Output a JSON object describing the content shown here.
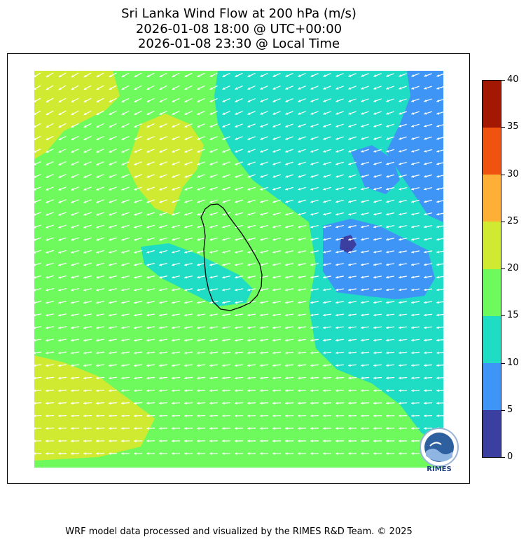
{
  "title": {
    "line1": "Sri Lanka Wind Flow at 200 hPa (m/s)",
    "line2": "2026-01-08 18:00 @ UTC+00:00",
    "line3": "2026-01-08 23:30 @ Local Time"
  },
  "colorbar": {
    "min": 0,
    "max": 40,
    "ticks": [
      "0",
      "5",
      "10",
      "15",
      "20",
      "25",
      "30",
      "35",
      "40"
    ],
    "bins": [
      {
        "from": 0,
        "to": 5,
        "color": "#3b3fa0"
      },
      {
        "from": 5,
        "to": 10,
        "color": "#3f95f5"
      },
      {
        "from": 10,
        "to": 15,
        "color": "#1fdcc4"
      },
      {
        "from": 15,
        "to": 20,
        "color": "#6efa5c"
      },
      {
        "from": 20,
        "to": 25,
        "color": "#cfea30"
      },
      {
        "from": 25,
        "to": 30,
        "color": "#fdaf36"
      },
      {
        "from": 30,
        "to": 35,
        "color": "#f0520f"
      },
      {
        "from": 35,
        "to": 40,
        "color": "#a31803"
      }
    ]
  },
  "map": {
    "field": "wind speed (m/s)",
    "vectors": "white wind arrows, mostly westward flow",
    "coastline": "Sri Lanka"
  },
  "logo": {
    "text": "RIMES"
  },
  "footer": "WRF model data processed and visualized by the RIMES R&D Team. © 2025"
}
